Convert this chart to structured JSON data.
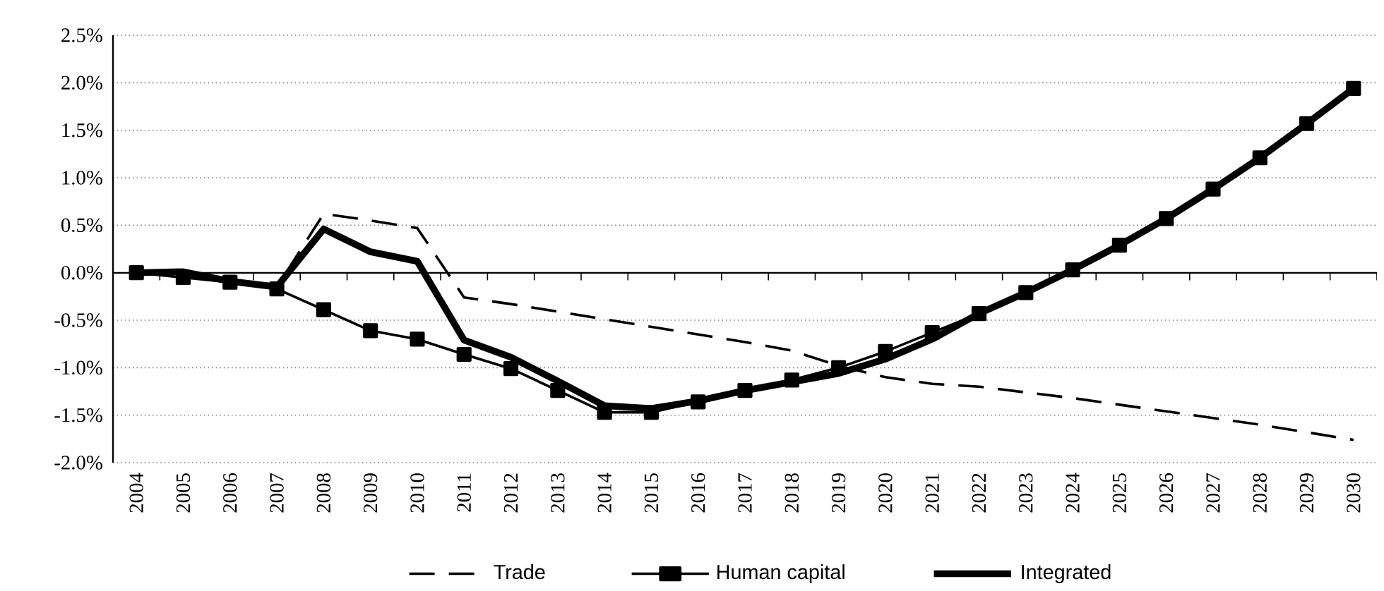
{
  "chart_data": {
    "type": "line",
    "categories": [
      "2004",
      "2005",
      "2006",
      "2007",
      "2008",
      "2009",
      "2010",
      "2011",
      "2012",
      "2013",
      "2014",
      "2015",
      "2016",
      "2017",
      "2018",
      "2019",
      "2020",
      "2021",
      "2022",
      "2023",
      "2024",
      "2025",
      "2026",
      "2027",
      "2028",
      "2029",
      "2030"
    ],
    "series": [
      {
        "name": "Trade",
        "color": "#000000",
        "line_style": "dashed",
        "marker": "none",
        "values": [
          0,
          -0.03,
          -0.1,
          -0.15,
          0.62,
          0.55,
          0.47,
          -0.26,
          -0.33,
          -0.41,
          -0.49,
          -0.57,
          -0.65,
          -0.73,
          -0.82,
          -0.98,
          -1.1,
          -1.17,
          -1.2,
          -1.26,
          -1.32,
          -1.39,
          -1.46,
          -1.53,
          -1.6,
          -1.68,
          -1.76
        ]
      },
      {
        "name": "Human capital",
        "color": "#000000",
        "line_style": "solid",
        "marker": "square",
        "values": [
          0,
          -0.05,
          -0.1,
          -0.17,
          -0.39,
          -0.61,
          -0.7,
          -0.86,
          -1.01,
          -1.24,
          -1.47,
          -1.47,
          -1.36,
          -1.24,
          -1.13,
          -1.0,
          -0.83,
          -0.63,
          -0.43,
          -0.21,
          0.03,
          0.29,
          0.57,
          0.88,
          1.21,
          1.57,
          1.94
        ]
      },
      {
        "name": "Integrated",
        "color": "#000000",
        "line_style": "solid",
        "marker": "none",
        "values": [
          0,
          0.01,
          -0.09,
          -0.15,
          0.46,
          0.22,
          0.12,
          -0.71,
          -0.89,
          -1.14,
          -1.4,
          -1.43,
          -1.35,
          -1.24,
          -1.15,
          -1.06,
          -0.91,
          -0.7,
          -0.43,
          -0.21,
          0.03,
          0.29,
          0.57,
          0.88,
          1.21,
          1.57,
          1.94
        ]
      }
    ],
    "ylim": [
      -2.0,
      2.5
    ],
    "yticks": [
      {
        "value": -2.0,
        "label": "-2.0%"
      },
      {
        "value": -1.5,
        "label": "-1.5%"
      },
      {
        "value": -1.0,
        "label": "-1.0%"
      },
      {
        "value": -0.5,
        "label": "-0.5%"
      },
      {
        "value": 0.0,
        "label": "0.0%"
      },
      {
        "value": 0.5,
        "label": "0.5%"
      },
      {
        "value": 1.0,
        "label": "1.0%"
      },
      {
        "value": 1.5,
        "label": "1.5%"
      },
      {
        "value": 2.0,
        "label": "2.0%"
      },
      {
        "value": 2.5,
        "label": "2.5%"
      }
    ],
    "grid": "y",
    "legend": "bottom"
  }
}
